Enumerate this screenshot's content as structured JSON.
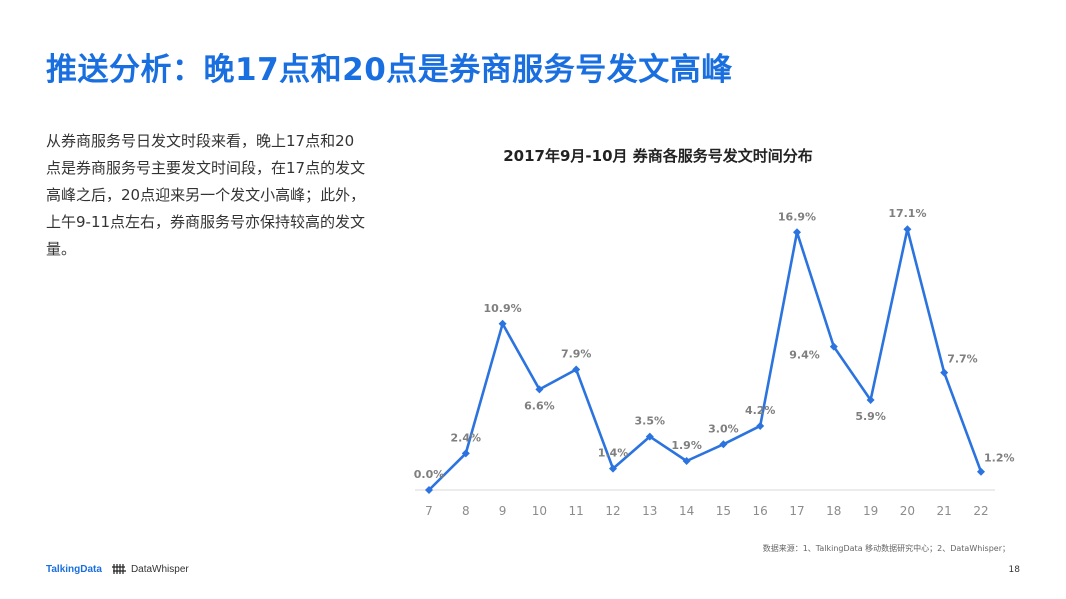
{
  "slide": {
    "title": "推送分析：晚17点和20点是券商服务号发文高峰",
    "description": "从券商服务号日发文时段来看，晚上17点和20点是券商服务号主要发文时间段，在17点的发文高峰之后，20点迎来另一个发文小高峰；此外，上午9-11点左右，券商服务号亦保持较高的发文量。",
    "source": "数据来源：1、TalkingData 移动数据研究中心；2、DataWhisper；",
    "page_number": "18",
    "logo_left": "TalkingData",
    "logo_right": "DataWhisper"
  },
  "chart_data": {
    "type": "line",
    "title": "2017年9月-10月 券商各服务号发文时间分布",
    "xlabel": "",
    "ylabel": "",
    "categories": [
      "7",
      "8",
      "9",
      "10",
      "11",
      "12",
      "13",
      "14",
      "15",
      "16",
      "17",
      "18",
      "19",
      "20",
      "21",
      "22"
    ],
    "series": [
      {
        "name": "",
        "values": [
          0.0,
          2.4,
          10.9,
          6.6,
          7.9,
          1.4,
          3.5,
          1.9,
          3.0,
          4.2,
          16.9,
          9.4,
          5.9,
          17.1,
          7.7,
          1.2
        ],
        "labels": [
          "0.0%",
          "2.4%",
          "10.9%",
          "6.6%",
          "7.9%",
          "1.4%",
          "3.5%",
          "1.9%",
          "3.0%",
          "4.2%",
          "16.9%",
          "9.4%",
          "5.9%",
          "17.1%",
          "7.7%",
          "1.2%"
        ],
        "color": "#2b73df"
      }
    ],
    "ylim": [
      0,
      18
    ],
    "grid": false,
    "legend": "none"
  }
}
